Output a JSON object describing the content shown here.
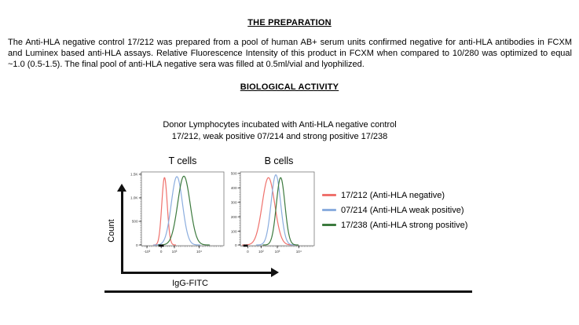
{
  "document": {
    "heading_preparation": "THE PREPARATION",
    "paragraph": "The Anti-HLA negative control 17/212 was prepared from a pool of human AB+ serum units confirmed negative for anti-HLA antibodies in FCXM and Luminex based anti-HLA assays. Relative Fluorescence Intensity of this product in FCXM when compared to 10/280 was optimized to equal ~1.0 (0.5-1.5). The final pool of anti-HLA negative sera was filled at 0.5ml/vial and lyophilized.",
    "heading_biological": "BIOLOGICAL ACTIVITY"
  },
  "figure": {
    "title_line1": "Donor Lymphocytes incubated with Anti-HLA negative control",
    "title_line2": "17/212, weak positive 07/214 and strong positive 17/238",
    "y_axis_label": "Count",
    "x_axis_label": "IgG-FITC",
    "legend": [
      {
        "label": "17/212 (Anti-HLA negative)",
        "color": "#ef716c"
      },
      {
        "label": "07/214 (Anti-HLA weak positive)",
        "color": "#8badde"
      },
      {
        "label": "17/238 (Anti-HLA strong positive)",
        "color": "#3c7a3e"
      }
    ]
  },
  "chart_data": [
    {
      "type": "line",
      "title": "T cells",
      "xlabel": "IgG-FITC",
      "ylabel": "Count",
      "x_ticks": [
        {
          "label": "-10³",
          "f": 0.067
        },
        {
          "label": "0",
          "f": 0.24
        },
        {
          "label": "10³",
          "f": 0.4
        },
        {
          "label": "10⁴",
          "f": 0.7
        }
      ],
      "y_ticks": [
        {
          "label": "1.5K",
          "f": 0.032
        },
        {
          "label": "1.0K",
          "f": 0.351
        },
        {
          "label": "500",
          "f": 0.67
        },
        {
          "label": "0",
          "f": 0.99
        }
      ],
      "ylim": [
        0,
        1550
      ],
      "y_scale": {
        "v0": 0,
        "f0": 0.99,
        "v1": 1500,
        "f1": 0.032
      },
      "grid": false,
      "series": [
        {
          "name": "17/212 (Anti-HLA negative)",
          "color": "#ef716c",
          "peak_count": 1430,
          "peak_center_f": 0.28,
          "sigma_f": 0.033
        },
        {
          "name": "07/214 (Anti-HLA weak positive)",
          "color": "#8badde",
          "peak_count": 1450,
          "peak_center_f": 0.43,
          "sigma_f": 0.068
        },
        {
          "name": "17/238 (Anti-HLA strong positive)",
          "color": "#3c7a3e",
          "peak_count": 1460,
          "peak_center_f": 0.515,
          "sigma_f": 0.075
        }
      ],
      "baseline_mark_f": [
        0.21,
        0.27
      ]
    },
    {
      "type": "line",
      "title": "B cells",
      "xlabel": "IgG-FITC",
      "ylabel": "Count",
      "x_ticks": [
        {
          "label": "0",
          "f": 0.1
        },
        {
          "label": "10²",
          "f": 0.28
        },
        {
          "label": "10³",
          "f": 0.5
        },
        {
          "label": "10⁴",
          "f": 0.79
        }
      ],
      "y_ticks": [
        {
          "label": "500",
          "f": 0.02
        },
        {
          "label": "400",
          "f": 0.216
        },
        {
          "label": "300",
          "f": 0.412
        },
        {
          "label": "200",
          "f": 0.608
        },
        {
          "label": "100",
          "f": 0.804
        },
        {
          "label": "0",
          "f": 0.99
        }
      ],
      "ylim": [
        0,
        510
      ],
      "y_scale": {
        "v0": 0,
        "f0": 0.99,
        "v1": 500,
        "f1": 0.02
      },
      "grid": false,
      "series": [
        {
          "name": "17/212 (Anti-HLA negative)",
          "color": "#ef716c",
          "peak_count": 470,
          "peak_center_f": 0.38,
          "sigma_f": 0.085
        },
        {
          "name": "07/214 (Anti-HLA weak positive)",
          "color": "#8badde",
          "peak_count": 490,
          "peak_center_f": 0.48,
          "sigma_f": 0.064
        },
        {
          "name": "17/238 (Anti-HLA strong positive)",
          "color": "#3c7a3e",
          "peak_count": 470,
          "peak_center_f": 0.545,
          "sigma_f": 0.058
        }
      ],
      "baseline_mark_f": [
        0.04,
        0.1
      ]
    }
  ]
}
